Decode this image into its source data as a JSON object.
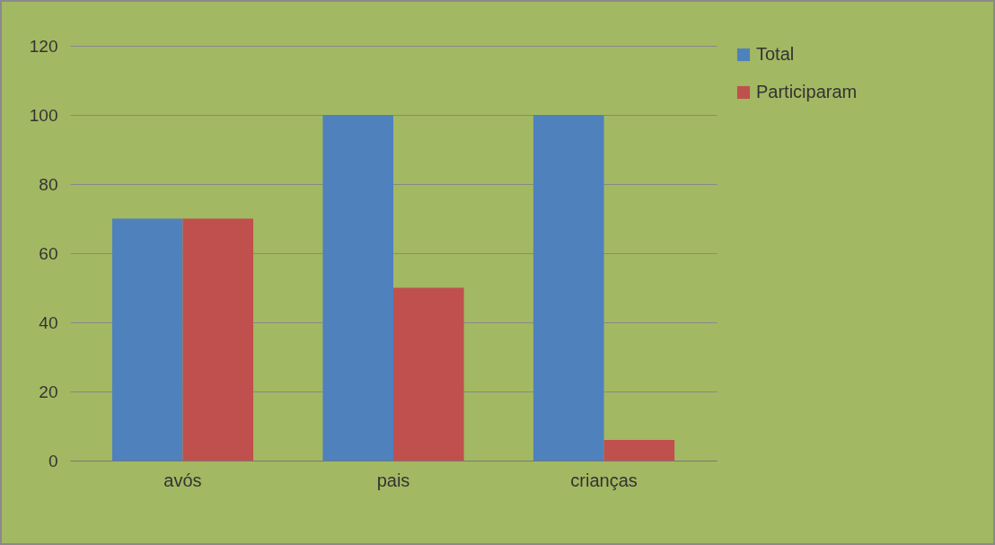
{
  "chart_data": {
    "type": "bar",
    "categories": [
      "avós",
      "pais",
      "crianças"
    ],
    "series": [
      {
        "name": "Total",
        "color": "#4f81bd",
        "values": [
          70,
          100,
          100
        ]
      },
      {
        "name": "Participaram",
        "color": "#c0504d",
        "values": [
          70,
          50,
          6
        ]
      }
    ],
    "ylim": [
      0,
      120
    ],
    "yticks": [
      0,
      20,
      40,
      60,
      80,
      100,
      120
    ],
    "grid": "y",
    "legend": "right"
  }
}
